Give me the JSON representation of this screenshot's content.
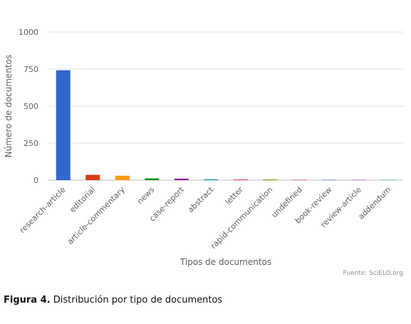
{
  "chart_data": {
    "type": "bar",
    "xlabel": "Tipos de documentos",
    "ylabel": "Número de documentos",
    "ylim": [
      0,
      1000
    ],
    "yticks": [
      0,
      250,
      500,
      750,
      1000
    ],
    "grid": true,
    "legend": "none",
    "categories": [
      "research-article",
      "editorial",
      "article-commentary",
      "news",
      "case-report",
      "abstract",
      "letter",
      "rapid-communication",
      "undefined",
      "book-review",
      "review-article",
      "addendum"
    ],
    "values": [
      742,
      36,
      30,
      12,
      10,
      6,
      5,
      5,
      1,
      1,
      1,
      1
    ],
    "colors": [
      "#3366cc",
      "#dc3912",
      "#ff9900",
      "#109618",
      "#990099",
      "#0099c6",
      "#dd4477",
      "#66aa00",
      "#b82e2e",
      "#316395",
      "#994499",
      "#22aa99"
    ]
  },
  "credit": "Fuente: SciELO.org",
  "caption": {
    "label": "Figura 4.",
    "text": " Distribución por tipo de documentos"
  }
}
